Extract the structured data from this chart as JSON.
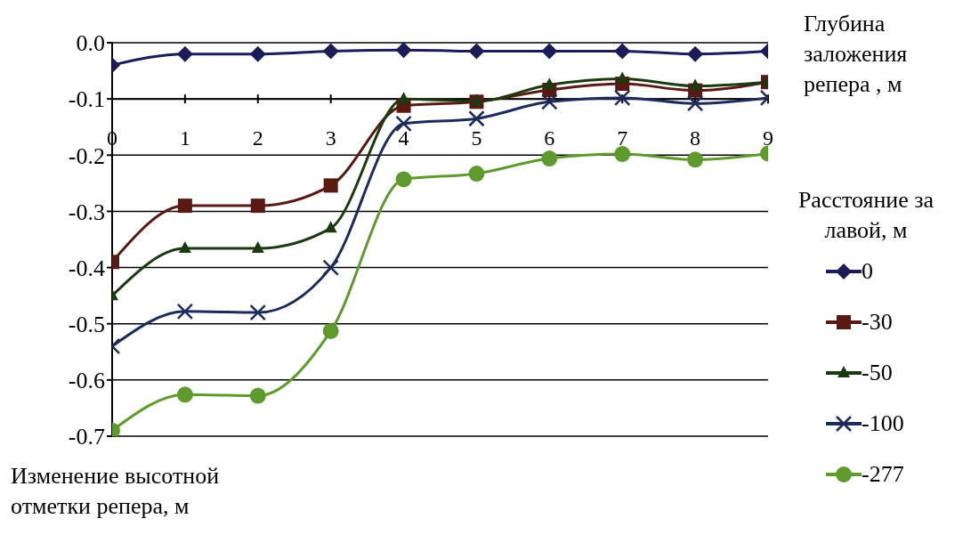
{
  "chart_data": {
    "type": "line",
    "xlabel": "Глубина заложения репера , м",
    "ylabel": "Изменение высотной отметки репера, м",
    "legend_title": "Расстояние за лавой, м",
    "categories": [
      "0",
      "1",
      "2",
      "3",
      "4",
      "5",
      "6",
      "7",
      "8",
      "9"
    ],
    "ylim": [
      -0.7,
      0
    ],
    "yticks": [
      {
        "value": 0,
        "label": "0.0"
      },
      -0.1,
      -0.2,
      -0.3,
      -0.4,
      -0.5,
      -0.6,
      -0.7
    ],
    "grid": "y",
    "legend": "right",
    "line_style": "solid",
    "series": [
      {
        "name": "0",
        "color": "#1c1c5a",
        "marker": "diamond",
        "values": [
          -0.04,
          -0.02,
          -0.02,
          -0.015,
          -0.013,
          -0.015,
          -0.015,
          -0.015,
          -0.02,
          -0.015
        ]
      },
      {
        "name": "-30",
        "color": "#5a1a14",
        "marker": "square",
        "values": [
          -0.39,
          -0.29,
          -0.29,
          -0.254,
          -0.112,
          -0.105,
          -0.084,
          -0.073,
          -0.085,
          -0.07
        ]
      },
      {
        "name": "-50",
        "color": "#1a3a10",
        "marker": "triangle",
        "values": [
          -0.45,
          -0.366,
          -0.366,
          -0.33,
          -0.1,
          -0.104,
          -0.075,
          -0.064,
          -0.077,
          -0.07
        ]
      },
      {
        "name": "-100",
        "color": "#1c2a5c",
        "marker": "cross",
        "values": [
          -0.54,
          -0.478,
          -0.48,
          -0.4,
          -0.144,
          -0.135,
          -0.105,
          -0.098,
          -0.108,
          -0.098
        ]
      },
      {
        "name": "-277",
        "color": "#5e9a2c",
        "marker": "circle",
        "values": [
          -0.69,
          -0.626,
          -0.628,
          -0.513,
          -0.243,
          -0.233,
          -0.206,
          -0.198,
          -0.208,
          -0.197
        ]
      }
    ]
  }
}
